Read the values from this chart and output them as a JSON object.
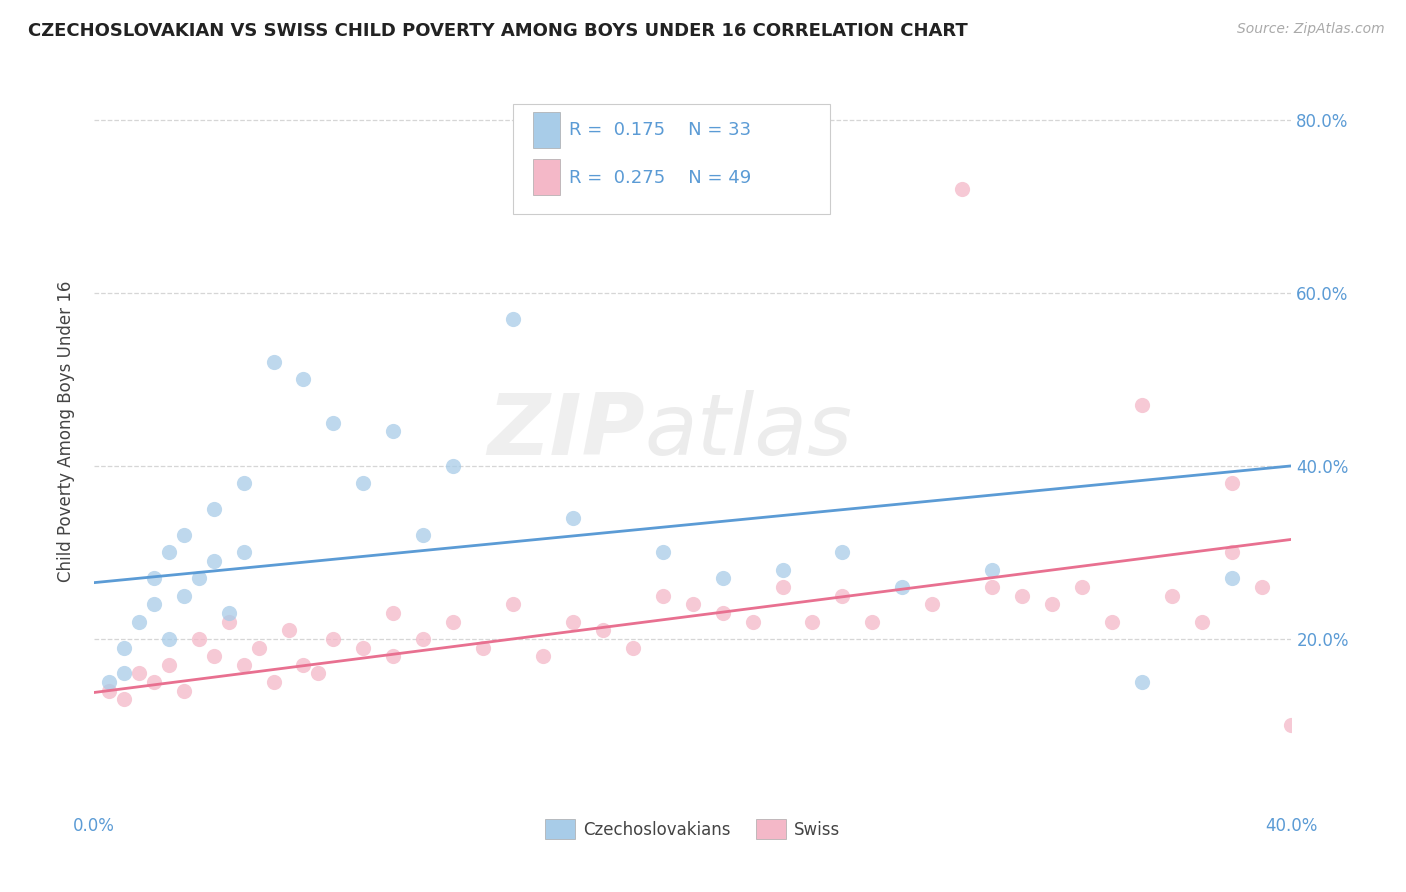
{
  "title": "CZECHOSLOVAKIAN VS SWISS CHILD POVERTY AMONG BOYS UNDER 16 CORRELATION CHART",
  "source": "Source: ZipAtlas.com",
  "ylabel": "Child Poverty Among Boys Under 16",
  "xlim": [
    0.0,
    0.4
  ],
  "ylim": [
    0.0,
    0.88
  ],
  "yticks": [
    0.2,
    0.4,
    0.6,
    0.8
  ],
  "ytick_labels_right": [
    "20.0%",
    "40.0%",
    "60.0%",
    "80.0%"
  ],
  "xtick_positions": [
    0.0,
    0.4
  ],
  "xtick_labels": [
    "0.0%",
    "40.0%"
  ],
  "blue_color": "#a8cce8",
  "pink_color": "#f4b8c8",
  "blue_line_color": "#5b9bd5",
  "pink_line_color": "#e87090",
  "r_blue": 0.175,
  "n_blue": 33,
  "r_pink": 0.275,
  "n_pink": 49,
  "watermark_zip": "ZIP",
  "watermark_atlas": "atlas",
  "legend_labels": [
    "Czechoslovakians",
    "Swiss"
  ],
  "blue_scatter_x": [
    0.005,
    0.01,
    0.01,
    0.015,
    0.02,
    0.02,
    0.025,
    0.025,
    0.03,
    0.03,
    0.035,
    0.04,
    0.04,
    0.045,
    0.05,
    0.05,
    0.06,
    0.07,
    0.08,
    0.09,
    0.1,
    0.11,
    0.12,
    0.14,
    0.16,
    0.19,
    0.21,
    0.23,
    0.25,
    0.27,
    0.3,
    0.35,
    0.38
  ],
  "blue_scatter_y": [
    0.15,
    0.16,
    0.19,
    0.22,
    0.24,
    0.27,
    0.2,
    0.3,
    0.25,
    0.32,
    0.27,
    0.29,
    0.35,
    0.23,
    0.38,
    0.3,
    0.52,
    0.5,
    0.45,
    0.38,
    0.44,
    0.32,
    0.4,
    0.57,
    0.34,
    0.3,
    0.27,
    0.28,
    0.3,
    0.26,
    0.28,
    0.15,
    0.27
  ],
  "pink_scatter_x": [
    0.005,
    0.01,
    0.015,
    0.02,
    0.025,
    0.03,
    0.035,
    0.04,
    0.045,
    0.05,
    0.055,
    0.06,
    0.065,
    0.07,
    0.075,
    0.08,
    0.09,
    0.1,
    0.1,
    0.11,
    0.12,
    0.13,
    0.14,
    0.15,
    0.16,
    0.17,
    0.18,
    0.19,
    0.2,
    0.21,
    0.22,
    0.23,
    0.24,
    0.25,
    0.26,
    0.28,
    0.29,
    0.3,
    0.31,
    0.32,
    0.33,
    0.34,
    0.35,
    0.36,
    0.37,
    0.38,
    0.38,
    0.39,
    0.4
  ],
  "pink_scatter_y": [
    0.14,
    0.13,
    0.16,
    0.15,
    0.17,
    0.14,
    0.2,
    0.18,
    0.22,
    0.17,
    0.19,
    0.15,
    0.21,
    0.17,
    0.16,
    0.2,
    0.19,
    0.23,
    0.18,
    0.2,
    0.22,
    0.19,
    0.24,
    0.18,
    0.22,
    0.21,
    0.19,
    0.25,
    0.24,
    0.23,
    0.22,
    0.26,
    0.22,
    0.25,
    0.22,
    0.24,
    0.72,
    0.26,
    0.25,
    0.24,
    0.26,
    0.22,
    0.47,
    0.25,
    0.22,
    0.38,
    0.3,
    0.26,
    0.1
  ],
  "background_color": "#ffffff",
  "grid_color": "#cccccc"
}
